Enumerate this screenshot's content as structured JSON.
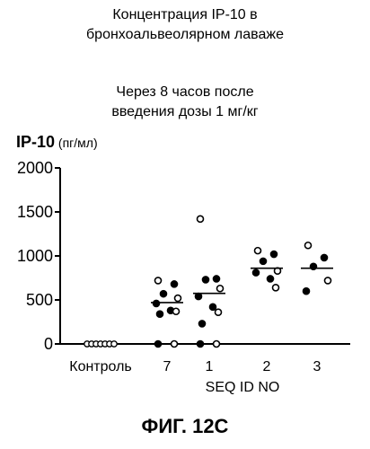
{
  "figure": {
    "title_line1": "Концентрация IP-10 в",
    "title_line2": "бронхоальвеолярном лаваже",
    "subtitle_line1": "Через 8 часов после",
    "subtitle_line2": "введения дозы 1 мг/кг",
    "ylabel_main": "IP-10",
    "ylabel_unit": " (пг/мл)",
    "xlabel": "SEQ ID NO",
    "caption": "ФИГ. 12С"
  },
  "chart_data": {
    "type": "scatter",
    "title": "Концентрация IP-10 в бронхоальвеолярном лаваже",
    "subtitle": "Через 8 часов после введения дозы 1 мг/кг",
    "xlabel": "SEQ ID NO",
    "ylabel": "IP-10 (пг/мл)",
    "ylim": [
      0,
      2000
    ],
    "yticks": [
      0,
      500,
      1000,
      1500,
      2000
    ],
    "grid": false,
    "categories": [
      "Контроль",
      "7",
      "1",
      "2",
      "3"
    ],
    "groups": [
      {
        "category": "Контроль",
        "points": [
          0,
          0,
          0,
          0,
          0,
          0,
          0
        ],
        "mean": 0
      },
      {
        "category": "7",
        "points": [
          720,
          680,
          570,
          520,
          460,
          380,
          370,
          340,
          0,
          0
        ],
        "mean": 470
      },
      {
        "category": "1",
        "points": [
          1420,
          740,
          730,
          630,
          540,
          420,
          360,
          230,
          0,
          0
        ],
        "mean": 575
      },
      {
        "category": "2",
        "points": [
          1060,
          1020,
          940,
          830,
          810,
          740,
          640
        ],
        "mean": 860
      },
      {
        "category": "3",
        "points": [
          1120,
          980,
          880,
          720,
          600
        ],
        "mean": 860
      }
    ]
  }
}
